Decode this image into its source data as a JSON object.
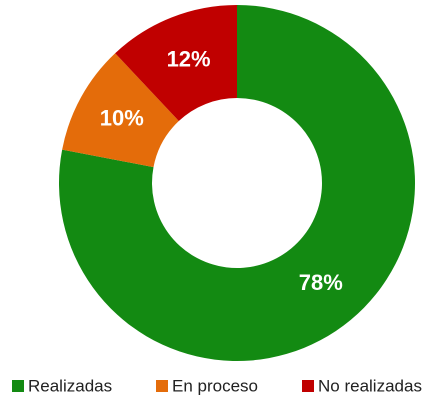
{
  "chart_data": {
    "type": "donut",
    "categories": [
      "Realizadas",
      "En proceso",
      "No realizadas"
    ],
    "values": [
      78,
      10,
      12
    ],
    "value_labels": [
      "78%",
      "10%",
      "12%"
    ],
    "colors": [
      "#138a12",
      "#e46c0a",
      "#c00000"
    ],
    "legend": "bottom"
  }
}
